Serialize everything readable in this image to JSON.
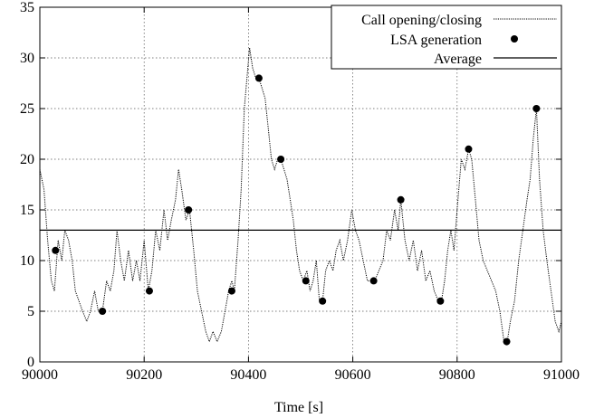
{
  "chart_data": {
    "type": "line",
    "title": "",
    "xlabel": "Time [s]",
    "ylabel": "",
    "xlim": [
      90000,
      91000
    ],
    "ylim": [
      0,
      35
    ],
    "x_ticks": [
      90000,
      90200,
      90400,
      90600,
      90800,
      91000
    ],
    "y_ticks": [
      0,
      5,
      10,
      15,
      20,
      25,
      30,
      35
    ],
    "grid": true,
    "legend_position": "top-right",
    "series": [
      {
        "name": "Call opening/closing",
        "style": "dotted-line",
        "points": [
          [
            90000,
            19
          ],
          [
            90008,
            17
          ],
          [
            90015,
            12
          ],
          [
            90022,
            8
          ],
          [
            90028,
            7
          ],
          [
            90035,
            12
          ],
          [
            90042,
            10
          ],
          [
            90048,
            13
          ],
          [
            90055,
            12
          ],
          [
            90062,
            10
          ],
          [
            90068,
            7
          ],
          [
            90075,
            6
          ],
          [
            90082,
            5
          ],
          [
            90090,
            4
          ],
          [
            90097,
            5
          ],
          [
            90105,
            7
          ],
          [
            90112,
            5
          ],
          [
            90120,
            5
          ],
          [
            90128,
            8
          ],
          [
            90135,
            7
          ],
          [
            90142,
            9
          ],
          [
            90148,
            13
          ],
          [
            90155,
            10
          ],
          [
            90162,
            8
          ],
          [
            90170,
            11
          ],
          [
            90178,
            8
          ],
          [
            90185,
            10
          ],
          [
            90192,
            8
          ],
          [
            90200,
            12
          ],
          [
            90208,
            7
          ],
          [
            90215,
            9
          ],
          [
            90222,
            13
          ],
          [
            90230,
            11
          ],
          [
            90238,
            15
          ],
          [
            90245,
            12
          ],
          [
            90252,
            14
          ],
          [
            90260,
            16
          ],
          [
            90266,
            19
          ],
          [
            90272,
            17
          ],
          [
            90280,
            14
          ],
          [
            90287,
            15
          ],
          [
            90295,
            11
          ],
          [
            90302,
            7
          ],
          [
            90310,
            5
          ],
          [
            90318,
            3
          ],
          [
            90325,
            2
          ],
          [
            90332,
            3
          ],
          [
            90340,
            2
          ],
          [
            90348,
            3
          ],
          [
            90355,
            5
          ],
          [
            90362,
            7
          ],
          [
            90368,
            8
          ],
          [
            90373,
            7
          ],
          [
            90380,
            12
          ],
          [
            90386,
            17
          ],
          [
            90392,
            25
          ],
          [
            90397,
            28
          ],
          [
            90402,
            31
          ],
          [
            90408,
            29
          ],
          [
            90414,
            28
          ],
          [
            90420,
            28
          ],
          [
            90426,
            27
          ],
          [
            90432,
            26
          ],
          [
            90438,
            23
          ],
          [
            90444,
            20
          ],
          [
            90450,
            19
          ],
          [
            90456,
            20
          ],
          [
            90462,
            20
          ],
          [
            90468,
            19
          ],
          [
            90474,
            18
          ],
          [
            90480,
            16
          ],
          [
            90486,
            14
          ],
          [
            90492,
            11
          ],
          [
            90498,
            9
          ],
          [
            90505,
            8
          ],
          [
            90512,
            9
          ],
          [
            90518,
            7
          ],
          [
            90524,
            8
          ],
          [
            90530,
            10
          ],
          [
            90536,
            6
          ],
          [
            90542,
            6
          ],
          [
            90548,
            9
          ],
          [
            90555,
            10
          ],
          [
            90562,
            9
          ],
          [
            90568,
            11
          ],
          [
            90575,
            12
          ],
          [
            90582,
            10
          ],
          [
            90590,
            12
          ],
          [
            90598,
            15
          ],
          [
            90605,
            13
          ],
          [
            90612,
            12
          ],
          [
            90620,
            10
          ],
          [
            90628,
            8
          ],
          [
            90636,
            8
          ],
          [
            90642,
            8
          ],
          [
            90650,
            9
          ],
          [
            90658,
            10
          ],
          [
            90665,
            13
          ],
          [
            90672,
            12
          ],
          [
            90680,
            15
          ],
          [
            90687,
            13
          ],
          [
            90692,
            16
          ],
          [
            90700,
            12
          ],
          [
            90708,
            10
          ],
          [
            90716,
            12
          ],
          [
            90724,
            9
          ],
          [
            90732,
            11
          ],
          [
            90740,
            8
          ],
          [
            90748,
            9
          ],
          [
            90756,
            7
          ],
          [
            90764,
            6
          ],
          [
            90770,
            6
          ],
          [
            90776,
            8
          ],
          [
            90782,
            11
          ],
          [
            90788,
            13
          ],
          [
            90794,
            11
          ],
          [
            90800,
            15
          ],
          [
            90808,
            20
          ],
          [
            90815,
            19
          ],
          [
            90822,
            21
          ],
          [
            90828,
            20
          ],
          [
            90835,
            16
          ],
          [
            90842,
            12
          ],
          [
            90850,
            10
          ],
          [
            90858,
            9
          ],
          [
            90866,
            8
          ],
          [
            90874,
            7
          ],
          [
            90882,
            5
          ],
          [
            90890,
            2
          ],
          [
            90896,
            2
          ],
          [
            90902,
            4
          ],
          [
            90910,
            6
          ],
          [
            90918,
            10
          ],
          [
            90926,
            13
          ],
          [
            90934,
            16
          ],
          [
            90940,
            18
          ],
          [
            90946,
            22
          ],
          [
            90952,
            25
          ],
          [
            90958,
            18
          ],
          [
            90965,
            13
          ],
          [
            90972,
            10
          ],
          [
            90980,
            7
          ],
          [
            90988,
            4
          ],
          [
            90995,
            3
          ],
          [
            91000,
            4
          ]
        ]
      },
      {
        "name": "LSA generation",
        "style": "points",
        "points": [
          [
            90030,
            11
          ],
          [
            90120,
            5
          ],
          [
            90210,
            7
          ],
          [
            90285,
            15
          ],
          [
            90368,
            7
          ],
          [
            90420,
            28
          ],
          [
            90462,
            20
          ],
          [
            90510,
            8
          ],
          [
            90542,
            6
          ],
          [
            90640,
            8
          ],
          [
            90692,
            16
          ],
          [
            90768,
            6
          ],
          [
            90822,
            21
          ],
          [
            90895,
            2
          ],
          [
            90952,
            25
          ]
        ]
      },
      {
        "name": "Average",
        "style": "solid-line",
        "value": 13
      }
    ]
  }
}
